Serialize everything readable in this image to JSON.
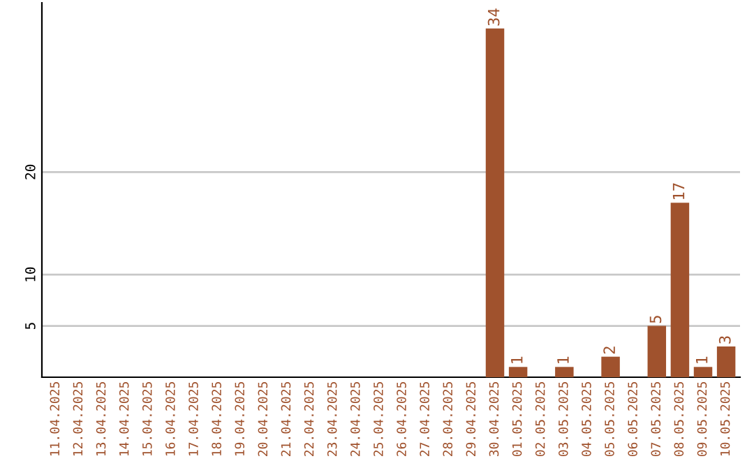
{
  "chart_data": {
    "type": "bar",
    "categories": [
      "11.04.2025",
      "12.04.2025",
      "13.04.2025",
      "14.04.2025",
      "15.04.2025",
      "16.04.2025",
      "17.04.2025",
      "18.04.2025",
      "19.04.2025",
      "20.04.2025",
      "21.04.2025",
      "22.04.2025",
      "23.04.2025",
      "24.04.2025",
      "25.04.2025",
      "26.04.2025",
      "27.04.2025",
      "28.04.2025",
      "29.04.2025",
      "30.04.2025",
      "01.05.2025",
      "02.05.2025",
      "03.05.2025",
      "04.05.2025",
      "05.05.2025",
      "06.05.2025",
      "07.05.2025",
      "08.05.2025",
      "09.05.2025",
      "10.05.2025"
    ],
    "values": [
      0,
      0,
      0,
      0,
      0,
      0,
      0,
      0,
      0,
      0,
      0,
      0,
      0,
      0,
      0,
      0,
      0,
      0,
      0,
      34,
      1,
      0,
      1,
      0,
      2,
      0,
      5,
      17,
      1,
      3
    ],
    "value_labels": [
      null,
      null,
      null,
      null,
      null,
      null,
      null,
      null,
      null,
      null,
      null,
      null,
      null,
      null,
      null,
      null,
      null,
      null,
      null,
      "34",
      "1",
      null,
      "1",
      null,
      "2",
      null,
      "5",
      "17",
      "1",
      "3"
    ],
    "color": "#a0522d",
    "ylim": [
      0,
      36.5
    ],
    "yticks": [
      5,
      10,
      20
    ],
    "grid": "y"
  }
}
